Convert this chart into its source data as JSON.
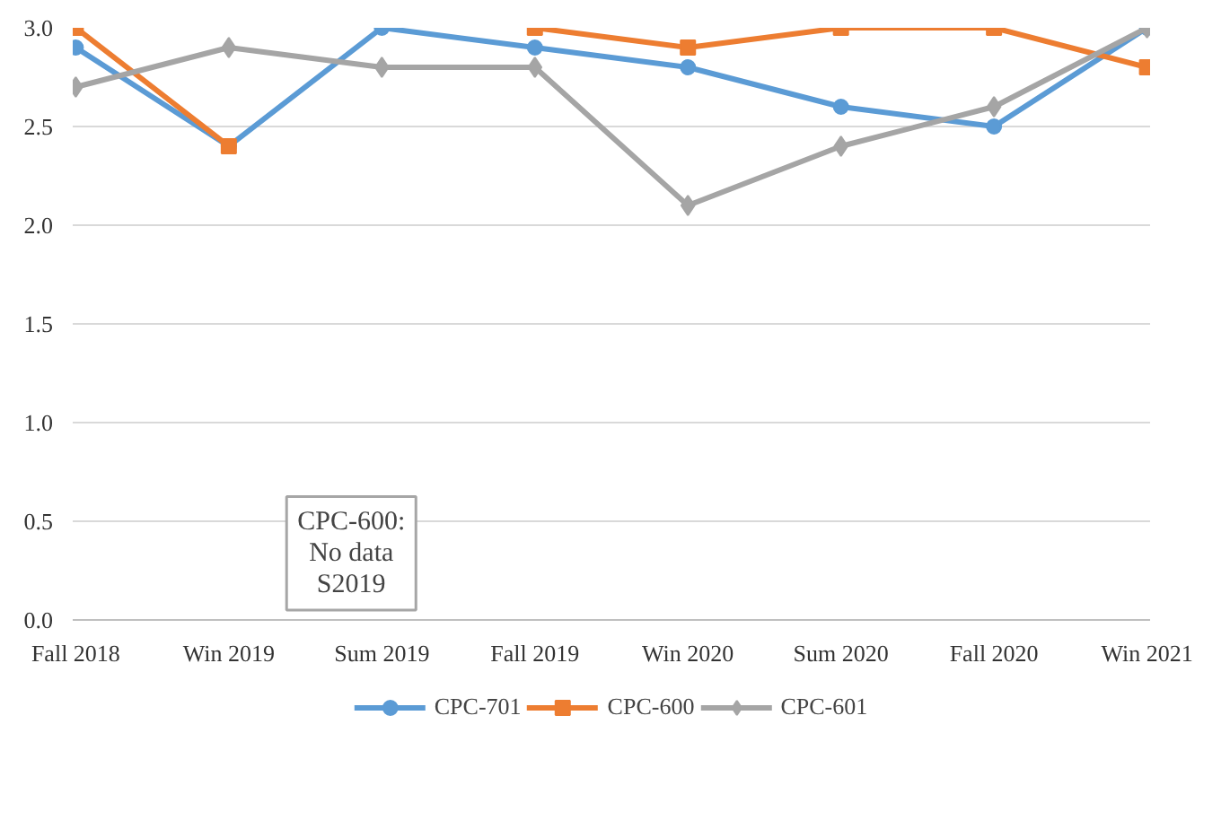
{
  "chart_data": {
    "type": "line",
    "categories": [
      "Fall 2018",
      "Win 2019",
      "Sum 2019",
      "Fall 2019",
      "Win 2020",
      "Sum 2020",
      "Fall 2020",
      "Win 2021"
    ],
    "series": [
      {
        "name": "CPC-701",
        "color": "#5b9bd5",
        "marker": "circle",
        "values": [
          2.9,
          2.4,
          3.0,
          2.9,
          2.8,
          2.6,
          2.5,
          3.0
        ]
      },
      {
        "name": "CPC-600",
        "color": "#ed7d31",
        "marker": "square",
        "values": [
          3.0,
          2.4,
          null,
          3.0,
          2.9,
          3.0,
          3.0,
          2.8
        ]
      },
      {
        "name": "CPC-601",
        "color": "#a5a5a5",
        "marker": "diamond",
        "values": [
          2.7,
          2.9,
          2.8,
          2.8,
          2.1,
          2.4,
          2.6,
          3.0
        ]
      }
    ],
    "ylim": [
      0,
      3.0
    ],
    "yticks": [
      {
        "value": 0,
        "label": "0.0"
      },
      {
        "value": 0.5,
        "label": "0.5"
      },
      {
        "value": 1.0,
        "label": "1.0"
      },
      {
        "value": 1.5,
        "label": "1.5"
      },
      {
        "value": 2.0,
        "label": "2.0"
      },
      {
        "value": 2.5,
        "label": "2.5"
      },
      {
        "value": 3.0,
        "label": "3.0"
      }
    ],
    "grid": "y",
    "legend": "bottom",
    "annotations": [
      "CPC-600:\nNo data\nS2019"
    ]
  }
}
